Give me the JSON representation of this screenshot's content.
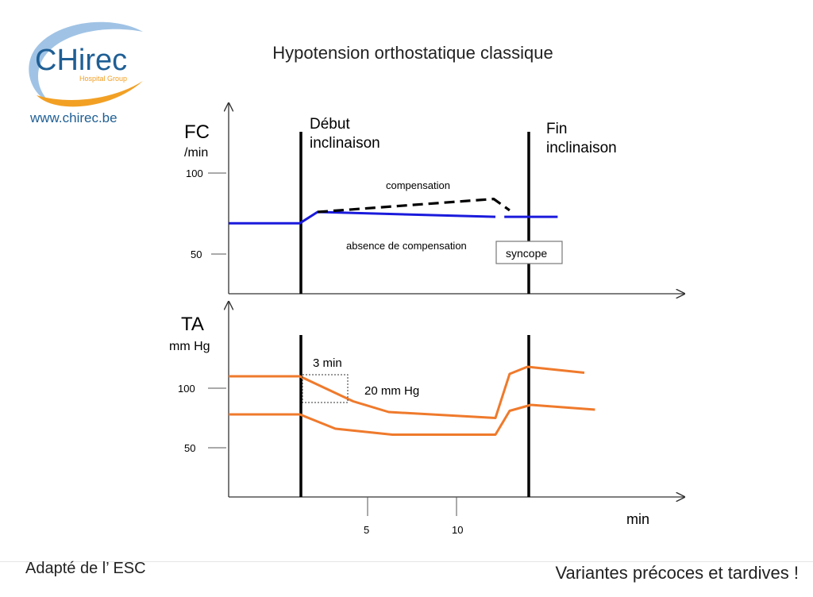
{
  "logo": {
    "brand": "CHirec",
    "tagline": "Hospital Group",
    "url": "www.chirec.be",
    "colors": {
      "blue": "#1f5f95",
      "orange": "#f2a024",
      "swoosh": "#8fb8e0"
    }
  },
  "title": "Hypotension orthostatique classique",
  "fc_panel": {
    "ylabel": "FC",
    "yunit": "/min",
    "yticks": [
      "100",
      "50"
    ],
    "markers": [
      {
        "label_line1": "Début",
        "label_line2": "inclinaison"
      },
      {
        "label_line1": "Fin",
        "label_line2": "inclinaison"
      }
    ],
    "annotations": {
      "compensation": "compensation",
      "absence": "absence de compensation",
      "syncope": "syncope"
    },
    "series": [
      {
        "name": "absence de compensation",
        "color": "#1a1adc",
        "style": "solid",
        "points": [
          [
            0,
            69
          ],
          [
            4,
            69
          ],
          [
            5,
            76
          ],
          [
            15,
            73
          ]
        ]
      },
      {
        "name": "absence de compensation",
        "color": "#1a1adc",
        "style": "solid",
        "points": [
          [
            15.5,
            73
          ],
          [
            18.5,
            73
          ]
        ]
      },
      {
        "name": "compensation",
        "color": "#000000",
        "style": "dashed",
        "points": [
          [
            5,
            76
          ],
          [
            14.9,
            84
          ],
          [
            15.8,
            77
          ]
        ]
      }
    ]
  },
  "ta_panel": {
    "ylabel": "TA",
    "yunit": "mm Hg",
    "yticks": [
      "100",
      "50"
    ],
    "xticks": [
      "5",
      "10"
    ],
    "xlabel": "min",
    "annotations": {
      "time": "3 min",
      "drop": "20 mm Hg"
    },
    "series": [
      {
        "color": "#ef7a2c",
        "points": [
          [
            0,
            110
          ],
          [
            4,
            110
          ],
          [
            7,
            89
          ],
          [
            9,
            80
          ],
          [
            15,
            75
          ],
          [
            15.8,
            112
          ],
          [
            16.8,
            118
          ],
          [
            20,
            113
          ]
        ]
      },
      {
        "color": "#ef7a2c",
        "points": [
          [
            0,
            78
          ],
          [
            4,
            78
          ],
          [
            6,
            66
          ],
          [
            9.2,
            61
          ],
          [
            15,
            61
          ],
          [
            15.8,
            81
          ],
          [
            17,
            86
          ],
          [
            20.6,
            82
          ]
        ]
      }
    ]
  },
  "footer": {
    "left": "Adapté de l’ ESC",
    "right": "Variantes précoces et tardives !"
  }
}
